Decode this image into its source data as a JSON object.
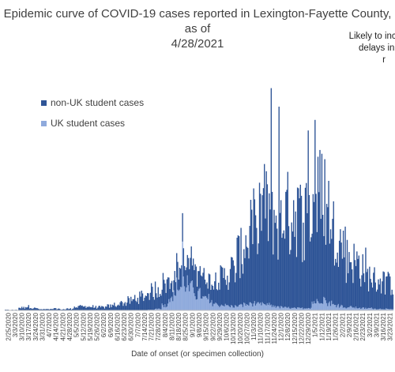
{
  "chart_data": {
    "type": "bar",
    "stacked": true,
    "title": "Epidemic curve of COVID-19 cases reported in Lexington-Fayette County, as of 4/28/2021",
    "title_lines": [
      "Epidemic curve of COVID-19 cases reported in Lexington-Fayette County, as of",
      "4/28/2021"
    ],
    "annotation_lines": [
      "Likely to increase",
      "delays in tes",
      "r"
    ],
    "xlabel": "Date of onset (or specimen collection)",
    "ylabel": "",
    "grid": false,
    "legend_placement": "top-left",
    "x_tick_labels": [
      "2/25/2020",
      "3/3/2020",
      "3/10/2020",
      "3/17/2020",
      "3/24/2020",
      "3/31/2020",
      "4/7/2020",
      "4/14/2020",
      "4/21/2020",
      "4/28/2020",
      "5/5/2020",
      "5/12/2020",
      "5/19/2020",
      "5/26/2020",
      "6/2/2020",
      "6/9/2020",
      "6/16/2020",
      "6/23/2020",
      "6/30/2020",
      "7/7/2020",
      "7/14/2020",
      "7/21/2020",
      "7/28/2020",
      "8/4/2020",
      "8/11/2020",
      "8/18/2020",
      "8/25/2020",
      "9/1/2020",
      "9/8/2020",
      "9/15/2020",
      "9/22/2020",
      "9/29/2020",
      "10/6/2020",
      "10/13/2020",
      "10/20/2020",
      "10/27/2020",
      "11/3/2020",
      "11/10/2020",
      "11/17/2020",
      "11/24/2020",
      "12/1/2020",
      "12/8/2020",
      "12/15/2020",
      "12/22/2020",
      "12/29/2020",
      "1/5/2021",
      "1/12/2021",
      "1/19/2021",
      "1/26/2021",
      "2/2/2021",
      "2/9/2021",
      "2/16/2021",
      "2/23/2021",
      "3/2/2021",
      "3/9/2021",
      "3/16/2021",
      "3/23/2021"
    ],
    "series": [
      {
        "name": "non-UK student cases",
        "color": "#2f5597",
        "weekly_avg_values": [
          1,
          1,
          5,
          7,
          4,
          2,
          2,
          3,
          2,
          3,
          6,
          7,
          7,
          6,
          6,
          8,
          11,
          14,
          18,
          24,
          28,
          34,
          38,
          43,
          32,
          36,
          39,
          45,
          47,
          38,
          44,
          52,
          56,
          68,
          96,
          118,
          146,
          178,
          182,
          170,
          158,
          175,
          186,
          168,
          176,
          190,
          205,
          172,
          140,
          118,
          92,
          86,
          78,
          60,
          55,
          52,
          48
        ]
      },
      {
        "name": "UK student cases",
        "color": "#8faadc",
        "weekly_avg_values": [
          0,
          0,
          0,
          0,
          0,
          0,
          0,
          0,
          0,
          0,
          0,
          0,
          0,
          0,
          0,
          0,
          0,
          0,
          0,
          0,
          0,
          1,
          3,
          10,
          28,
          45,
          52,
          40,
          30,
          22,
          14,
          10,
          9,
          8,
          9,
          11,
          13,
          11,
          10,
          8,
          6,
          5,
          4,
          4,
          5,
          16,
          22,
          14,
          10,
          8,
          6,
          5,
          4,
          4,
          3,
          3,
          2
        ]
      }
    ],
    "peaks": [
      {
        "x": "11/24/2020",
        "series": "non-UK student cases",
        "value": 420
      },
      {
        "x": "12/1/2020",
        "series": "non-UK student cases",
        "value": 385
      },
      {
        "x": "12/29/2020",
        "series": "non-UK student cases",
        "value": 340
      },
      {
        "x": "1/5/2021",
        "series": "non-UK student cases",
        "value": 360
      },
      {
        "x": "8/25/2020",
        "series": "UK student cases",
        "value": 130
      }
    ]
  }
}
